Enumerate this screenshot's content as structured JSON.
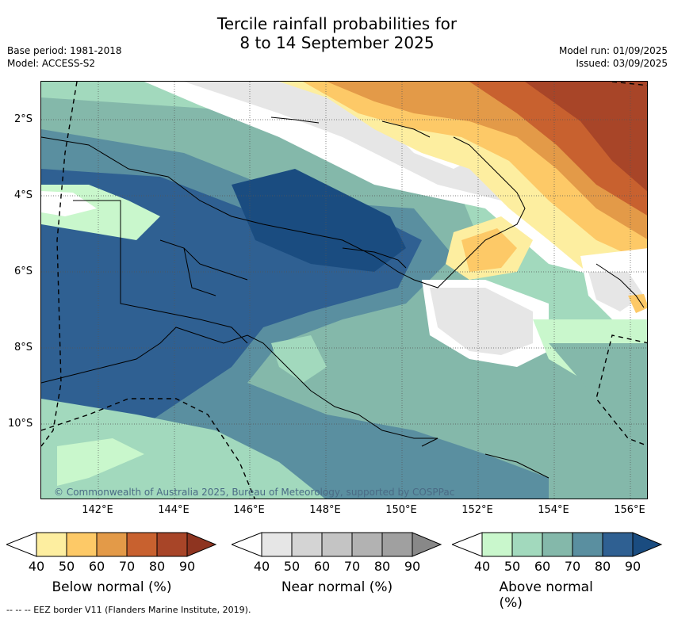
{
  "title": {
    "line1": "Tercile rainfall probabilities for",
    "line2": "8 to 14 September 2025"
  },
  "meta": {
    "base_period": "Base period: 1981-2018",
    "model": "Model: ACCESS-S2",
    "model_run": "Model run: 01/09/2025",
    "issued": "Issued: 03/09/2025"
  },
  "map": {
    "lat_labels": [
      "2°S",
      "4°S",
      "6°S",
      "8°S",
      "10°S"
    ],
    "lon_labels": [
      "142°E",
      "144°E",
      "146°E",
      "148°E",
      "150°E",
      "152°E",
      "154°E",
      "156°E"
    ],
    "copyright": "© Commonwealth of Australia 2025, Bureau of Meteorology, supported by COSPPac"
  },
  "legends": [
    {
      "label": "Below normal (%)",
      "ticks": [
        "40",
        "50",
        "60",
        "70",
        "80",
        "90"
      ],
      "colors": [
        "#ffffff",
        "#fdeea0",
        "#fdc967",
        "#e39a48",
        "#c8612f",
        "#a84528",
        "#8e3420"
      ]
    },
    {
      "label": "Near normal (%)",
      "ticks": [
        "40",
        "50",
        "60",
        "70",
        "80",
        "90"
      ],
      "colors": [
        "#ffffff",
        "#e6e6e6",
        "#d4d4d4",
        "#c4c4c4",
        "#b2b2b2",
        "#a0a0a0",
        "#888888"
      ]
    },
    {
      "label": "Above normal (%)",
      "ticks": [
        "40",
        "50",
        "60",
        "70",
        "80",
        "90"
      ],
      "colors": [
        "#ffffff",
        "#c9f7cc",
        "#a2d9bd",
        "#84b8aa",
        "#5a8fa0",
        "#2f6092",
        "#1a4c80"
      ]
    }
  ],
  "footnote": "-- -- -- EEZ border V11 (Flanders Marine Institute, 2019)."
}
